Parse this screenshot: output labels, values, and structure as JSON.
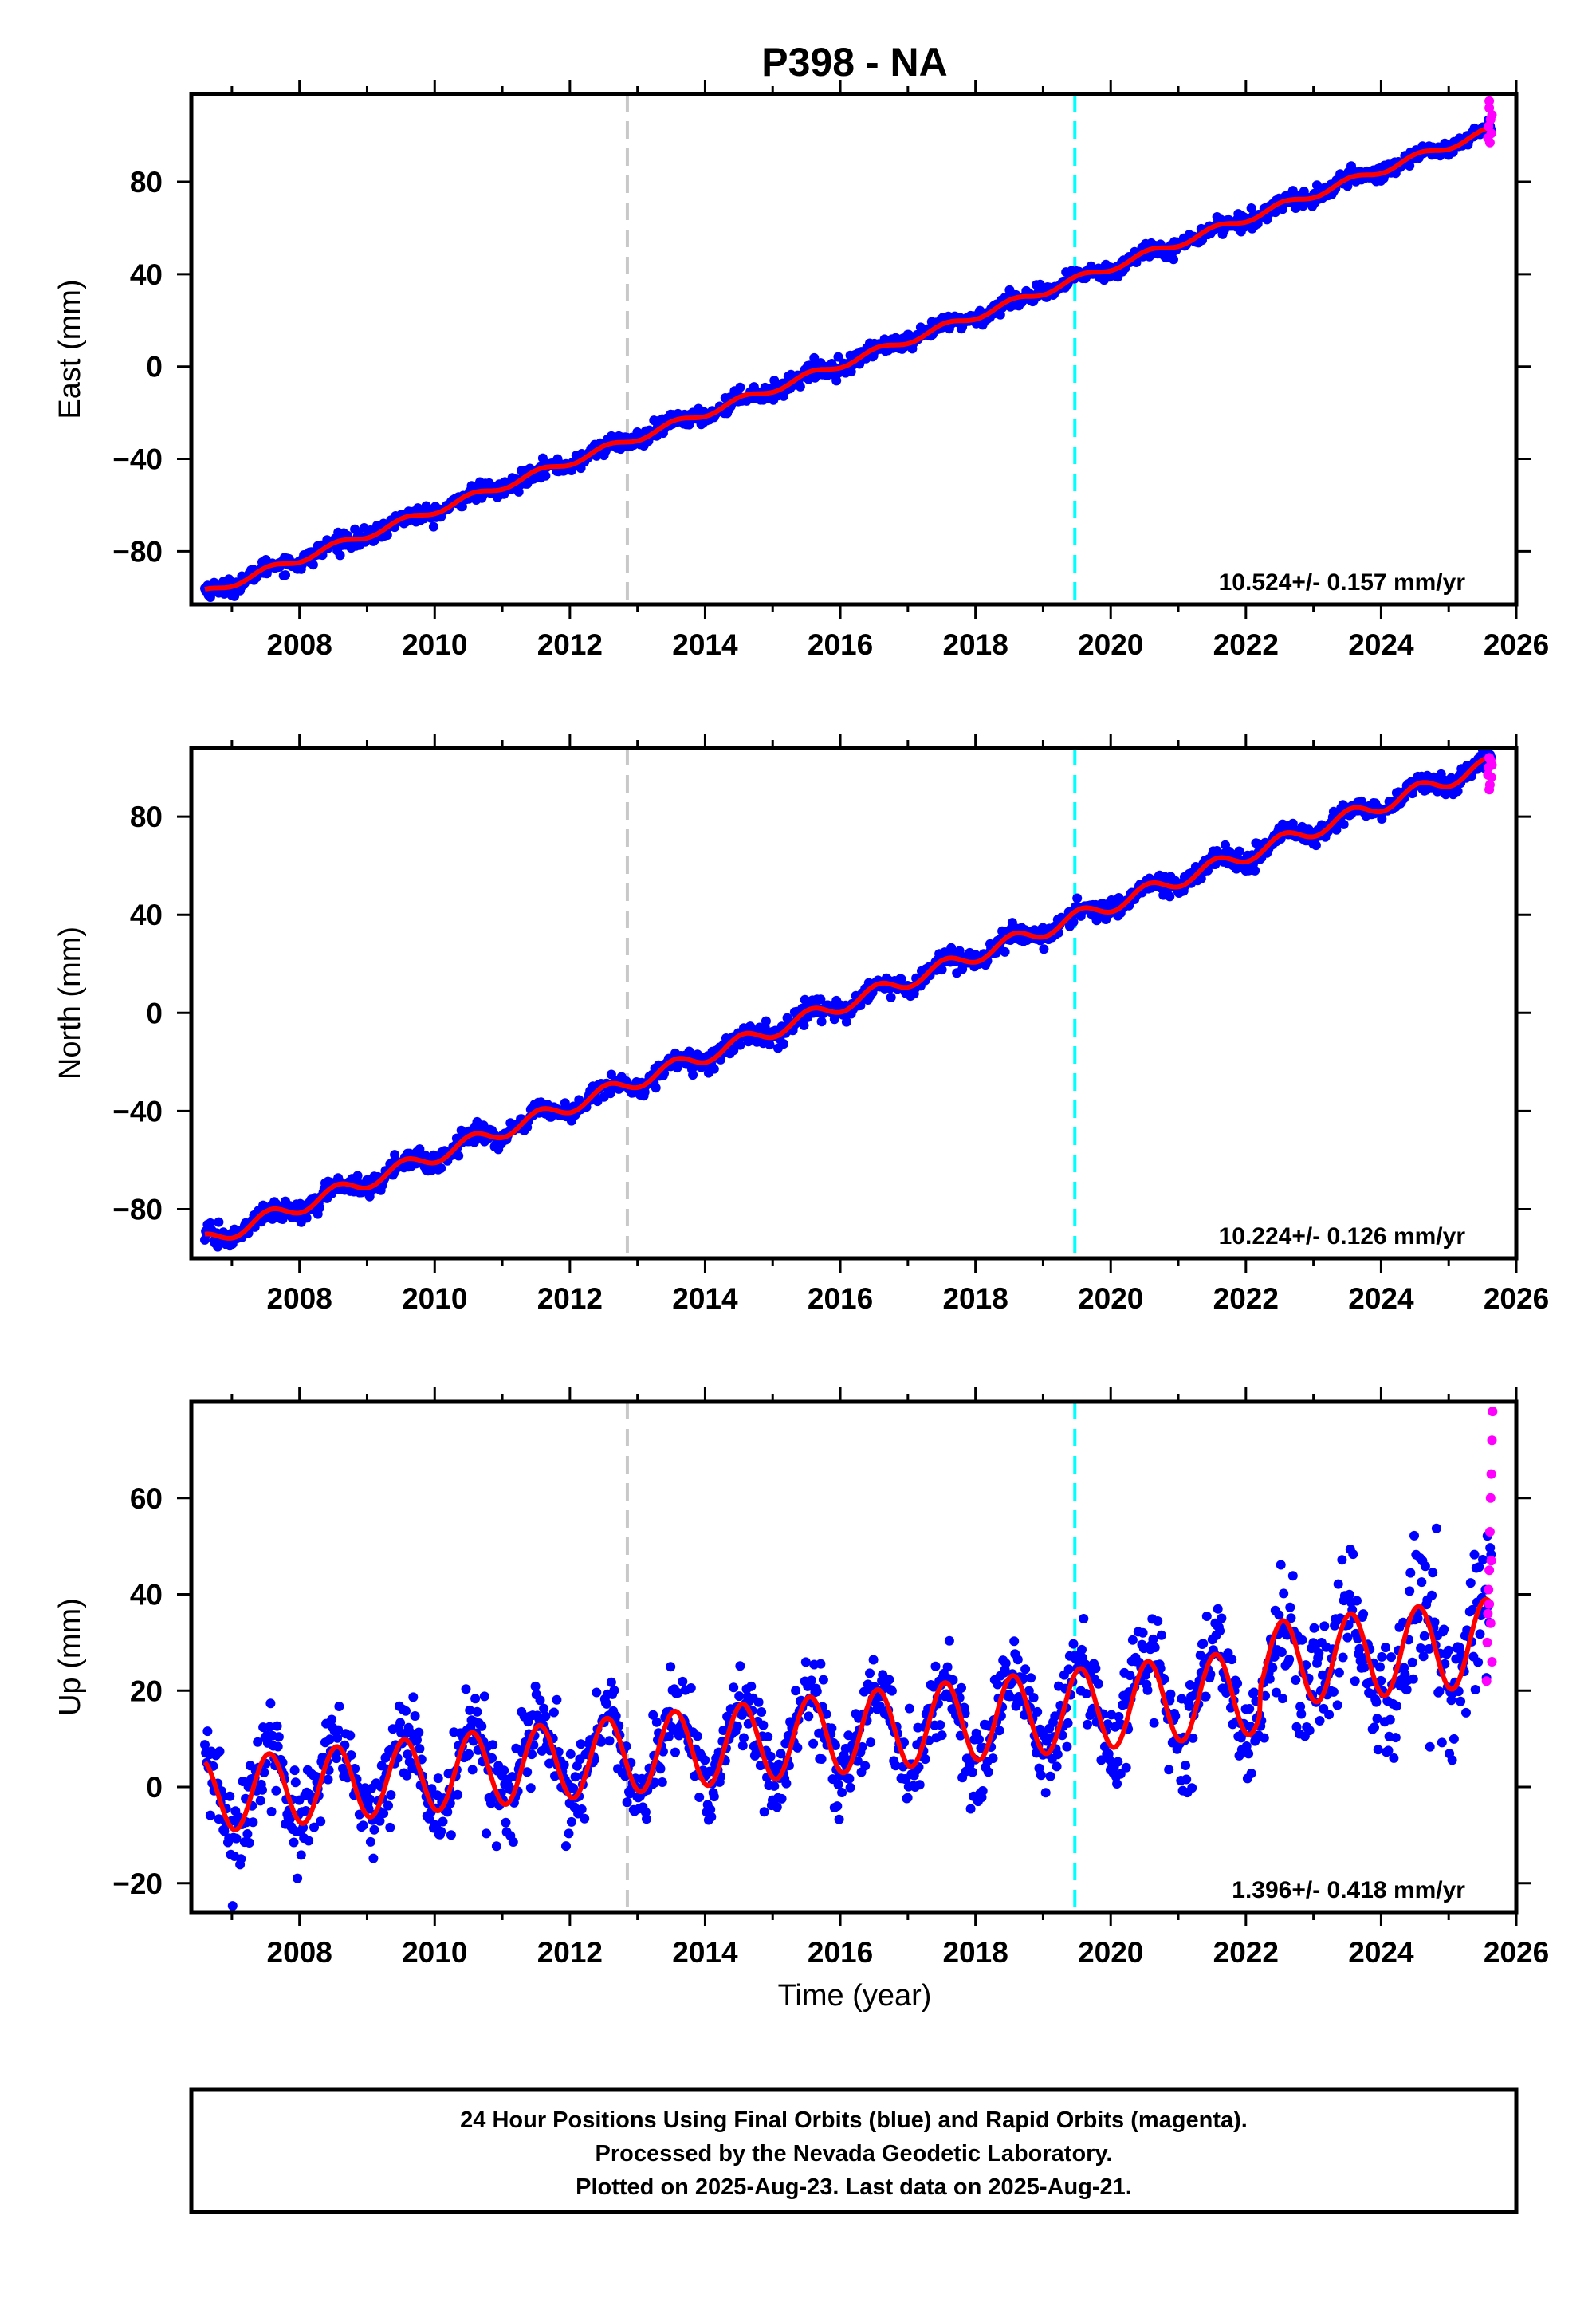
{
  "title": "P398 - NA",
  "x_axis_label": "Time (year)",
  "footer": {
    "line1": "24 Hour Positions Using Final Orbits (blue) and Rapid Orbits (magenta).",
    "line2": "Processed by the Nevada Geodetic Laboratory.",
    "line3": "Plotted on 2025-Aug-23. Last data on 2025-Aug-21."
  },
  "colors": {
    "final_orbits": "#0000ff",
    "rapid_orbits": "#ff00ff",
    "model_fit": "#ff0000",
    "event_line_1": "#c8c8c8",
    "event_line_2": "#00ffff",
    "frame": "#000000"
  },
  "chart_data": [
    {
      "type": "scatter",
      "ylabel": "East (mm)",
      "xlim": [
        2006.4,
        2026
      ],
      "ylim": [
        -103,
        118
      ],
      "x_ticks": [
        2008,
        2010,
        2012,
        2014,
        2016,
        2018,
        2020,
        2022,
        2024,
        2026
      ],
      "y_ticks": [
        -80,
        -40,
        0,
        40,
        80
      ],
      "rate_label": "10.524+/- 0.157 mm/yr",
      "vertical_lines": [
        {
          "x": 2012.85,
          "color": "#c8c8c8",
          "style": "dashed"
        },
        {
          "x": 2019.47,
          "color": "#00ffff",
          "style": "dashed"
        }
      ],
      "fit": {
        "start": 2006.6,
        "end": 2025.64,
        "value_at_start": -98.0,
        "rate_mm_per_yr": 10.524,
        "seasonal_amp": 1.6,
        "scatter": 1.8
      },
      "rapid_points": [
        [
          2025.58,
          99
        ],
        [
          2025.59,
          104
        ],
        [
          2025.6,
          112
        ],
        [
          2025.61,
          97
        ],
        [
          2025.62,
          107
        ],
        [
          2025.63,
          101
        ],
        [
          2025.64,
          109
        ],
        [
          2025.6,
          115
        ]
      ]
    },
    {
      "type": "scatter",
      "ylabel": "North (mm)",
      "xlim": [
        2006.4,
        2026
      ],
      "ylim": [
        -100,
        108
      ],
      "x_ticks": [
        2008,
        2010,
        2012,
        2014,
        2016,
        2018,
        2020,
        2022,
        2024,
        2026
      ],
      "y_ticks": [
        -80,
        -40,
        0,
        40,
        80
      ],
      "rate_label": "10.224+/- 0.126 mm/yr",
      "vertical_lines": [
        {
          "x": 2012.85,
          "color": "#c8c8c8",
          "style": "dashed"
        },
        {
          "x": 2019.47,
          "color": "#00ffff",
          "style": "dashed"
        }
      ],
      "fit": {
        "start": 2006.6,
        "end": 2025.64,
        "value_at_start": -93.0,
        "rate_mm_per_yr": 10.224,
        "seasonal_amp": 3.0,
        "scatter": 2.0
      },
      "rapid_points": [
        [
          2025.58,
          97
        ],
        [
          2025.59,
          100
        ],
        [
          2025.6,
          104
        ],
        [
          2025.61,
          93
        ],
        [
          2025.62,
          103
        ],
        [
          2025.63,
          96
        ],
        [
          2025.64,
          101
        ],
        [
          2025.6,
          91
        ]
      ]
    },
    {
      "type": "scatter",
      "ylabel": "Up (mm)",
      "xlim": [
        2006.4,
        2026
      ],
      "ylim": [
        -26,
        80
      ],
      "x_ticks": [
        2008,
        2010,
        2012,
        2014,
        2016,
        2018,
        2020,
        2022,
        2024,
        2026
      ],
      "y_ticks": [
        -20,
        0,
        20,
        40,
        60
      ],
      "rate_label": "1.396+/- 0.418 mm/yr",
      "vertical_lines": [
        {
          "x": 2012.85,
          "color": "#c8c8c8",
          "style": "dashed"
        },
        {
          "x": 2019.47,
          "color": "#00ffff",
          "style": "dashed"
        }
      ],
      "fit": {
        "start": 2006.6,
        "end": 2025.64,
        "value_at_start": -2.0,
        "rate_mm_per_yr": 1.396,
        "seasonal_amp": 7.5,
        "scatter": 4.5
      },
      "rapid_points": [
        [
          2025.56,
          22
        ],
        [
          2025.57,
          30
        ],
        [
          2025.58,
          36
        ],
        [
          2025.59,
          41
        ],
        [
          2025.6,
          45
        ],
        [
          2025.61,
          53
        ],
        [
          2025.62,
          60
        ],
        [
          2025.63,
          65
        ],
        [
          2025.64,
          72
        ],
        [
          2025.65,
          78
        ],
        [
          2025.6,
          38
        ],
        [
          2025.62,
          34
        ],
        [
          2025.64,
          26
        ],
        [
          2025.63,
          47
        ]
      ]
    }
  ]
}
